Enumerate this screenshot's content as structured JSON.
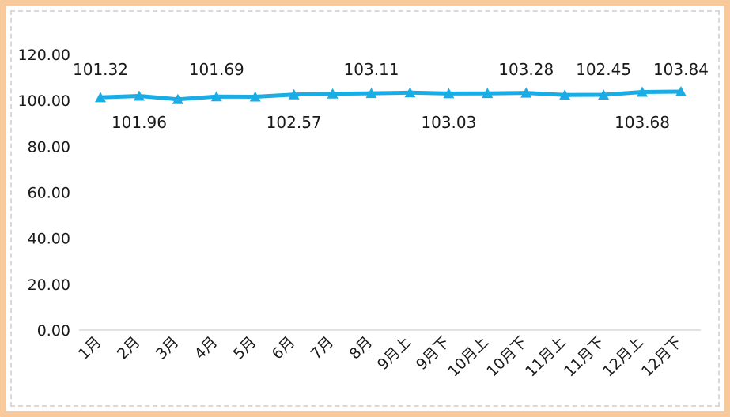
{
  "chart_data": {
    "type": "line",
    "title": "",
    "xlabel": "",
    "ylabel": "",
    "categories": [
      "1月",
      "2月",
      "3月",
      "4月",
      "5月",
      "6月",
      "7月",
      "8月",
      "9月上",
      "9月下",
      "10月上",
      "10月下",
      "11月上",
      "11月下",
      "12月上",
      "12月下"
    ],
    "series": [
      {
        "values": [
          101.32,
          101.96,
          100.5,
          101.69,
          101.6,
          102.57,
          102.9,
          103.11,
          103.4,
          103.03,
          103.1,
          103.28,
          102.4,
          102.45,
          103.68,
          103.84
        ]
      }
    ],
    "data_labels": [
      {
        "index": 0,
        "text": "101.32",
        "pos": "above"
      },
      {
        "index": 1,
        "text": "101.96",
        "pos": "below"
      },
      {
        "index": 3,
        "text": "101.69",
        "pos": "above"
      },
      {
        "index": 5,
        "text": "102.57",
        "pos": "below"
      },
      {
        "index": 7,
        "text": "103.11",
        "pos": "above"
      },
      {
        "index": 9,
        "text": "103.03",
        "pos": "below"
      },
      {
        "index": 11,
        "text": "103.28",
        "pos": "above"
      },
      {
        "index": 13,
        "text": "102.45",
        "pos": "above"
      },
      {
        "index": 14,
        "text": "103.68",
        "pos": "below"
      },
      {
        "index": 15,
        "text": "103.84",
        "pos": "above"
      }
    ],
    "yticks": [
      "0.00",
      "20.00",
      "40.00",
      "60.00",
      "80.00",
      "100.00",
      "120.00"
    ],
    "ylim": [
      0,
      120
    ],
    "grid": false,
    "legend": "none",
    "colors": {
      "line": "#1aace4",
      "marker": "#1aace4",
      "axis": "#d9d9d9",
      "frame": "#f8c99b"
    }
  }
}
